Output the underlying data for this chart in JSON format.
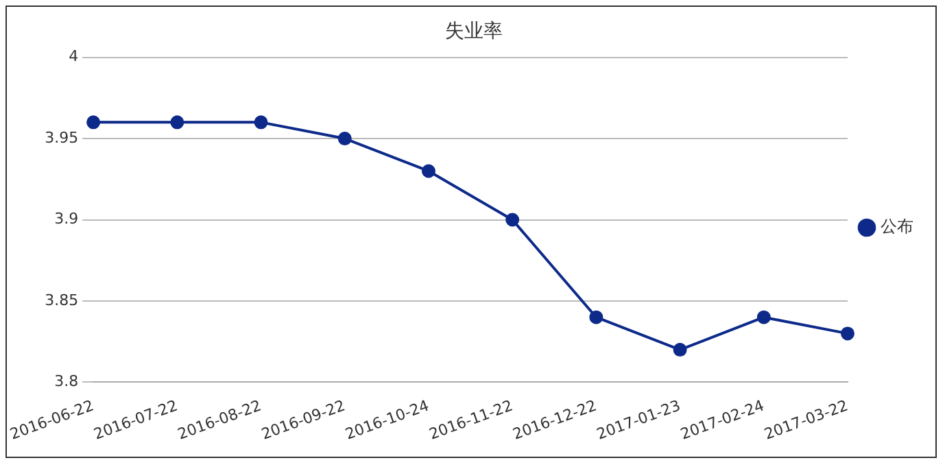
{
  "chart_data": {
    "type": "line",
    "title": "失业率",
    "categories": [
      "2016-06-22",
      "2016-07-22",
      "2016-08-22",
      "2016-09-22",
      "2016-10-24",
      "2016-11-22",
      "2016-12-22",
      "2017-01-23",
      "2017-02-24",
      "2017-03-22"
    ],
    "series": [
      {
        "name": "公布",
        "color": "#0d2a8a",
        "values": [
          3.96,
          3.96,
          3.96,
          3.95,
          3.93,
          3.9,
          3.84,
          3.82,
          3.84,
          3.83
        ]
      }
    ],
    "ylim": [
      3.8,
      4
    ],
    "yticks": [
      3.8,
      3.85,
      3.9,
      3.95,
      4
    ],
    "grid": "y",
    "legend": "right",
    "marker": "circle",
    "line_style": "solid"
  }
}
